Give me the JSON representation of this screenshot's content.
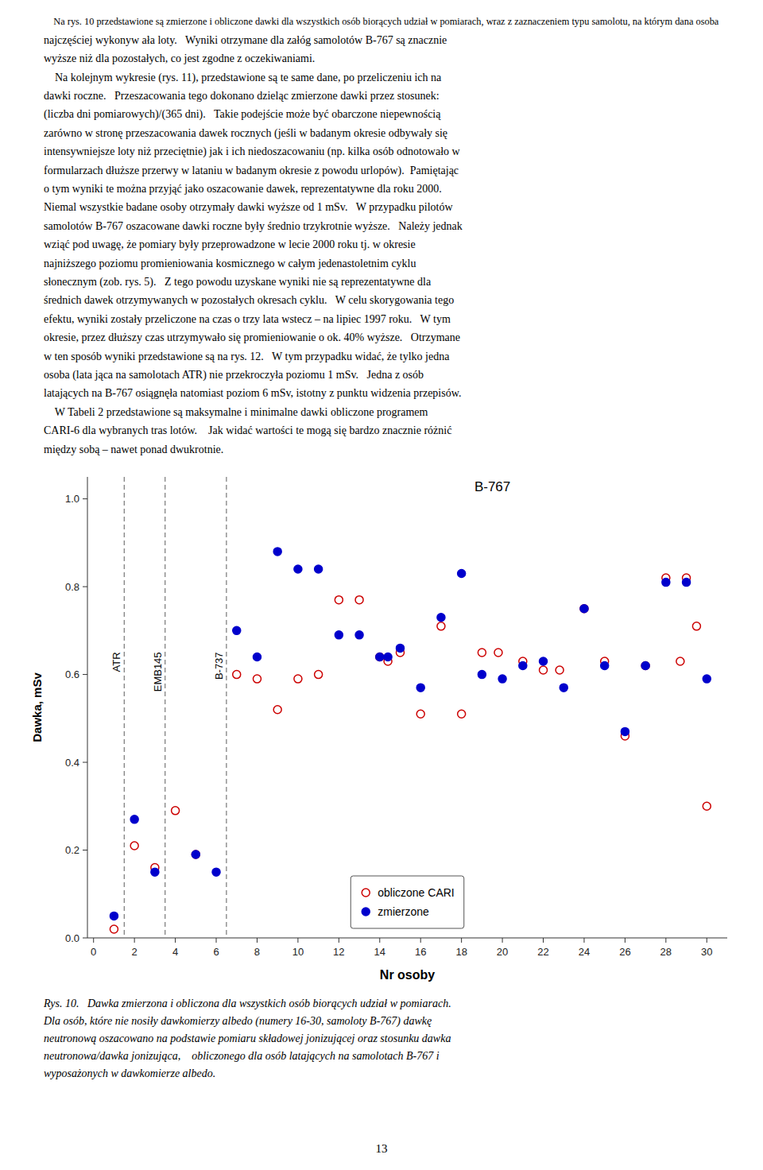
{
  "chart_data": {
    "type": "scatter",
    "xlabel": "Nr osoby",
    "ylabel": "Dawka, mSv",
    "xlim": [
      -0.3,
      31
    ],
    "ylim": [
      0.0,
      1.05
    ],
    "xticks": [
      0,
      2,
      4,
      6,
      8,
      10,
      12,
      14,
      16,
      18,
      20,
      22,
      24,
      26,
      28,
      30
    ],
    "yticks": [
      {
        "value": 0.0,
        "label": "0.0"
      },
      0.2,
      0.4,
      0.6,
      0.8,
      {
        "value": 1.0,
        "label": "1.0"
      }
    ],
    "grid": false,
    "legend": "bottom",
    "annotations": [
      {
        "text": "ATR",
        "x": 1.5
      },
      {
        "text": "EMB145",
        "x": 3.5
      },
      {
        "text": "B-737",
        "x": 6.5
      },
      {
        "text": "B-767"
      }
    ],
    "series": [
      {
        "name": "obliczone CARI",
        "color": "#cc0000",
        "marker": "circle-open",
        "x": [
          1,
          2,
          3,
          4,
          5,
          7,
          8,
          9,
          10,
          11,
          12,
          13,
          14,
          14.4,
          15,
          16,
          17,
          18,
          19,
          19.8,
          21,
          22,
          22.8,
          24,
          25,
          26,
          27,
          28,
          28.7,
          29,
          29.5,
          30
        ],
        "values": [
          0.02,
          0.21,
          0.16,
          0.29,
          0.19,
          0.6,
          0.59,
          0.52,
          0.59,
          0.6,
          0.77,
          0.77,
          0.64,
          0.63,
          0.65,
          0.51,
          0.71,
          0.51,
          0.65,
          0.65,
          0.63,
          0.61,
          0.61,
          0.75,
          0.63,
          0.46,
          0.62,
          0.82,
          0.63,
          0.82,
          0.71,
          0.3
        ]
      },
      {
        "name": "zmierzone",
        "color": "#0000cc",
        "marker": "circle",
        "x": [
          1,
          2,
          3,
          5,
          6,
          7,
          8,
          9,
          10,
          11,
          12,
          13,
          14,
          14.4,
          15,
          16,
          17,
          18,
          19,
          20,
          21,
          22,
          23,
          24,
          25,
          26,
          27,
          28,
          29,
          30
        ],
        "values": [
          0.05,
          0.27,
          0.15,
          0.19,
          0.15,
          0.7,
          0.64,
          0.88,
          0.84,
          0.84,
          0.69,
          0.69,
          0.64,
          0.64,
          0.66,
          0.57,
          0.73,
          0.83,
          0.6,
          0.59,
          0.62,
          0.63,
          0.57,
          0.75,
          0.62,
          0.47,
          0.62,
          0.81,
          0.81,
          0.59
        ]
      }
    ]
  },
  "body_text": [
    "    Na rys. 10 przedstawione są zmierzone i obliczone dawki dla wszystkich osób biorących udział w pomiarach, wraz z zaznaczeniem typu samolotu, na którym dana osoba",
    "najczęściej wykonyw ała loty.   Wyniki otrzymane dla załóg samolotów B-767 są znacznie",
    "wyższe niż dla pozostałych, co jest zgodne z oczekiwaniami.",
    "    Na kolejnym wykresie (rys. 11), przedstawione są te same dane, po przeliczeniu ich na",
    "dawki roczne.   Przeszacowania tego dokonano dzieląc zmierzone dawki przez stosunek:",
    "(liczba dni pomiarowych)/(365 dni).   Takie podejście może być obarczone niepewnością",
    "zarówno w stronę przeszacowania dawek rocznych (jeśli w badanym okresie odbywały się",
    "intensywniejsze loty niż przeciętnie) jak i ich niedoszacowaniu (np. kilka osób odnotowało w",
    "formularzach dłuższe przerwy w lataniu w badanym okresie z powodu urlopów).  Pamiętając",
    "o tym wyniki te można przyjąć jako oszacowanie dawek, reprezentatywne dla roku 2000.",
    "Niemal wszystkie badane osoby otrzymały dawki wyższe od 1 mSv.   W przypadku pilotów",
    "samolotów B-767 oszacowane dawki roczne były średnio trzykrotnie wyższe.   Należy jednak",
    "wziąć pod uwagę, że pomiary były przeprowadzone w lecie 2000 roku tj. w okresie",
    "najniższego poziomu promieniowania kosmicznego w całym jedenastoletnim cyklu",
    "słonecznym (zob. rys. 5).   Z tego powodu uzyskane wyniki nie są reprezentatywne dla",
    "średnich dawek otrzymywanych w pozostałych okresach cyklu.   W celu skorygowania tego",
    "efektu, wyniki zostały przeliczone na czas o trzy lata wstecz – na lipiec 1997 roku.   W tym",
    "okresie, przez dłuższy czas utrzymywało się promieniowanie o ok. 40% wyższe.   Otrzymane",
    "w ten sposób wyniki przedstawione są na rys. 12.   W tym przypadku widać, że tylko jedna",
    "osoba (lata jąca na samolotach ATR) nie przekroczyła poziomu 1 mSv.   Jedna z osób",
    "latających na B-767 osiągnęła natomiast poziom 6 mSv, istotny z punktu widzenia przepisów.",
    "    W Tabeli 2 przedstawione są maksymalne i minimalne dawki obliczone programem",
    "CARI-6 dla wybranych tras lotów.    Jak widać wartości te mogą się bardzo znacznie różnić",
    "między sobą – nawet ponad dwukrotnie."
  ],
  "caption": [
    "Rys. 10.   Dawka zmierzona i obliczona dla wszystkich osób biorących udział w pomiarach.",
    "Dla osób, które nie nosiły dawkomierzy albedo (numery 16-30, samoloty B-767) dawkę",
    "neutronową oszacowano na podstawie pomiaru składowej jonizującej oraz stosunku dawka",
    "neutronowa/dawka jonizująca,    obliczonego dla osób latających na samolotach B-767 i",
    "wyposażonych w dawkomierze albedo."
  ],
  "page_number": "13"
}
